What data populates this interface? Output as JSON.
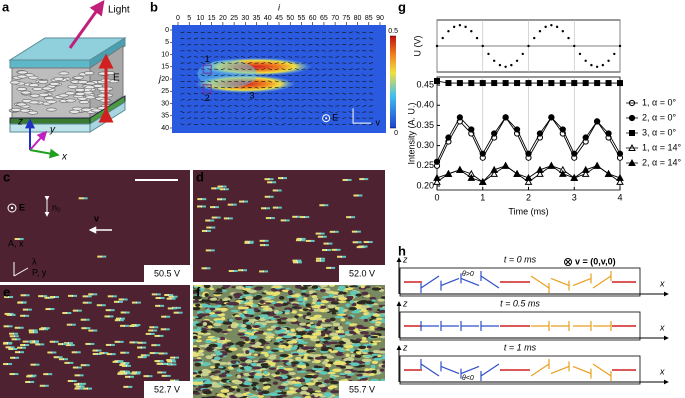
{
  "panel_labels": [
    "a",
    "b",
    "c",
    "d",
    "e",
    "f",
    "g",
    "h"
  ],
  "panel_a": {
    "light": "Light",
    "field": "E",
    "axes": [
      "z",
      "y",
      "x"
    ]
  },
  "panel_c": {
    "field": "E",
    "director": "n₀",
    "velocity": "v",
    "analyzer": "A, x",
    "polarizer": "P, y",
    "wavelength": "λ"
  },
  "voltages": [
    "50.5 V",
    "52.0 V",
    "52.7 V",
    "55.7 V"
  ],
  "panel_h": {
    "velocity_note": "v = (0,v,0)",
    "z": "z",
    "x": "x",
    "rows": [
      {
        "time": "t = 0 ms",
        "angle": "θ>0"
      },
      {
        "time": "t = 0.5 ms"
      },
      {
        "time": "t = 1 ms",
        "angle": "θ<0"
      }
    ]
  },
  "chart_data": [
    {
      "type": "heatmap",
      "x_label": "i",
      "y_label": "j",
      "xlim": [
        0,
        90
      ],
      "ylim": [
        0,
        40
      ],
      "xticks": [
        0,
        5,
        10,
        15,
        20,
        25,
        30,
        35,
        40,
        45,
        50,
        55,
        60,
        65,
        70,
        75,
        80,
        85,
        90
      ],
      "yticks": [
        0,
        5,
        10,
        15,
        20,
        25,
        30,
        35,
        40
      ],
      "colorbar_lim": [
        0,
        0.5
      ],
      "colorbar_ticks": [
        0,
        0.5
      ],
      "annotations": [
        "1",
        "2",
        "3"
      ],
      "field": "E",
      "velocity": "v"
    },
    {
      "type": "dots",
      "y_label": "U (V)",
      "color": "#000",
      "x": [
        0,
        0.125,
        0.25,
        0.375,
        0.5,
        0.625,
        0.75,
        0.875,
        1,
        1.125,
        1.25,
        1.375,
        1.5,
        1.625,
        1.75,
        1.875,
        2,
        2.125,
        2.25,
        2.375,
        2.5,
        2.625,
        2.75,
        2.875,
        3,
        3.125,
        3.25,
        3.375,
        3.5,
        3.625,
        3.75,
        3.875,
        4
      ],
      "values": [
        0,
        0.38,
        0.71,
        0.92,
        1,
        0.92,
        0.71,
        0.38,
        0,
        -0.38,
        -0.71,
        -0.92,
        -1,
        -0.92,
        -0.71,
        -0.38,
        0,
        0.38,
        0.71,
        0.92,
        1,
        0.92,
        0.71,
        0.38,
        0,
        -0.38,
        -0.71,
        -0.92,
        -1,
        -0.92,
        -0.71,
        -0.38,
        0
      ],
      "xlim": [
        0,
        4
      ],
      "ylim": [
        -1.25,
        1.25
      ],
      "xticks": [
        0,
        1,
        2,
        3,
        4
      ],
      "grid": true
    },
    {
      "type": "line-markers",
      "x_label": "Time (ms)",
      "y_label": "Intensity (A. U.)",
      "x": [
        0,
        0.25,
        0.5,
        0.75,
        1,
        1.25,
        1.5,
        1.75,
        2,
        2.25,
        2.5,
        2.75,
        3,
        3.25,
        3.5,
        3.75,
        4
      ],
      "xlim": [
        0,
        4
      ],
      "ylim": [
        0.19,
        0.47
      ],
      "xticks": [
        0,
        1,
        2,
        3,
        4
      ],
      "yticks": [
        {
          "value": 0.2,
          "label": "0.20"
        },
        0.25,
        {
          "value": 0.3,
          "label": "0.30"
        },
        0.35,
        {
          "value": 0.4,
          "label": "0.40"
        },
        0.45
      ],
      "grid": true,
      "legend": "right",
      "series": [
        {
          "name": "1, α = 0°",
          "color": "#000",
          "marker": "open-circle",
          "values": [
            0.25,
            0.31,
            0.36,
            0.33,
            0.27,
            0.32,
            0.37,
            0.33,
            0.27,
            0.32,
            0.37,
            0.33,
            0.27,
            0.31,
            0.36,
            0.32,
            0.27
          ]
        },
        {
          "name": "2, α = 0°",
          "color": "#000",
          "marker": "circle",
          "values": [
            0.26,
            0.32,
            0.37,
            0.34,
            0.28,
            0.33,
            0.37,
            0.34,
            0.28,
            0.33,
            0.37,
            0.34,
            0.28,
            0.32,
            0.36,
            0.33,
            0.28
          ]
        },
        {
          "name": "3, α = 0°",
          "color": "#000",
          "marker": "square",
          "values": [
            0.46,
            0.455,
            0.455,
            0.455,
            0.455,
            0.455,
            0.455,
            0.455,
            0.455,
            0.455,
            0.455,
            0.455,
            0.455,
            0.455,
            0.455,
            0.455,
            0.455
          ]
        },
        {
          "name": "1, α = 14°",
          "color": "#000",
          "marker": "open-triangle",
          "values": [
            0.21,
            0.23,
            0.24,
            0.23,
            0.21,
            0.23,
            0.25,
            0.23,
            0.21,
            0.23,
            0.25,
            0.24,
            0.22,
            0.23,
            0.25,
            0.23,
            0.21
          ]
        },
        {
          "name": "2, α = 14°",
          "color": "#000",
          "marker": "triangle",
          "values": [
            0.22,
            0.23,
            0.24,
            0.22,
            0.21,
            0.24,
            0.25,
            0.23,
            0.22,
            0.24,
            0.25,
            0.23,
            0.22,
            0.24,
            0.25,
            0.23,
            0.22
          ]
        }
      ]
    }
  ]
}
